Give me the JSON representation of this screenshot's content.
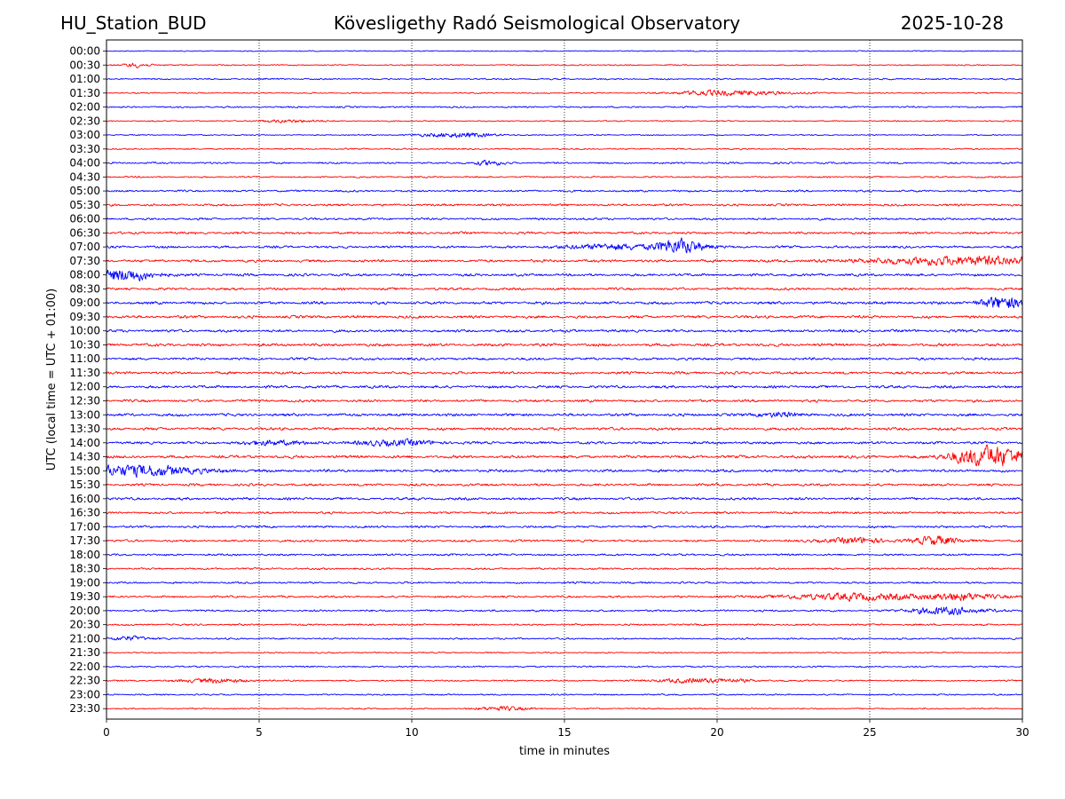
{
  "header": {
    "station": "HU_Station_BUD",
    "observatory": "Kövesligethy Radó Seismological Observatory",
    "date": "2025-10-28"
  },
  "chart_data": {
    "type": "line",
    "title": "Kövesligethy Radó Seismological Observatory",
    "xlabel": "time in minutes",
    "ylabel": "UTC (local time = UTC + 01:00)",
    "xlim": [
      0,
      30
    ],
    "xticks": [
      0,
      5,
      10,
      15,
      20,
      25,
      30
    ],
    "grid": "vertical dotted lines at x ticks",
    "row_labels": [
      "00:00",
      "00:30",
      "01:00",
      "01:30",
      "02:00",
      "02:30",
      "03:00",
      "03:30",
      "04:00",
      "04:30",
      "05:00",
      "05:30",
      "06:00",
      "06:30",
      "07:00",
      "07:30",
      "08:00",
      "08:30",
      "09:00",
      "09:30",
      "10:00",
      "10:30",
      "11:00",
      "11:30",
      "12:00",
      "12:30",
      "13:00",
      "13:30",
      "14:00",
      "14:30",
      "15:00",
      "15:30",
      "16:00",
      "16:30",
      "17:00",
      "17:30",
      "18:00",
      "18:30",
      "19:00",
      "19:30",
      "20:00",
      "20:30",
      "21:00",
      "21:30",
      "22:00",
      "22:30",
      "23:00",
      "23:30"
    ],
    "colors": [
      "#0000ff",
      "#ff0000"
    ],
    "noise_level": [
      0.18,
      0.22,
      0.26,
      0.22,
      0.3,
      0.22,
      0.2,
      0.26,
      0.32,
      0.28,
      0.36,
      0.4,
      0.4,
      0.42,
      0.42,
      0.46,
      0.46,
      0.44,
      0.5,
      0.5,
      0.48,
      0.52,
      0.46,
      0.46,
      0.48,
      0.46,
      0.5,
      0.5,
      0.46,
      0.52,
      0.5,
      0.44,
      0.46,
      0.4,
      0.4,
      0.4,
      0.36,
      0.34,
      0.34,
      0.36,
      0.34,
      0.32,
      0.3,
      0.24,
      0.28,
      0.28,
      0.26,
      0.24
    ],
    "events": [
      {
        "row": "00:30",
        "minute": 1.0,
        "amp": 1.0,
        "dur": 0.4
      },
      {
        "row": "01:30",
        "minute": 21.0,
        "amp": 0.9,
        "dur": 1.5
      },
      {
        "row": "01:30",
        "minute": 19.5,
        "amp": 0.7,
        "dur": 1.0
      },
      {
        "row": "02:30",
        "minute": 6.0,
        "amp": 0.6,
        "dur": 1.0
      },
      {
        "row": "03:00",
        "minute": 11.5,
        "amp": 1.1,
        "dur": 1.2
      },
      {
        "row": "04:00",
        "minute": 12.5,
        "amp": 1.0,
        "dur": 0.5
      },
      {
        "row": "07:00",
        "minute": 18.8,
        "amp": 3.2,
        "dur": 0.8
      },
      {
        "row": "07:00",
        "minute": 16.5,
        "amp": 1.2,
        "dur": 1.5
      },
      {
        "row": "07:30",
        "minute": 28.5,
        "amp": 1.8,
        "dur": 3.5
      },
      {
        "row": "08:00",
        "minute": 0.6,
        "amp": 2.6,
        "dur": 1.0
      },
      {
        "row": "09:00",
        "minute": 29.4,
        "amp": 2.6,
        "dur": 0.8
      },
      {
        "row": "13:00",
        "minute": 22.0,
        "amp": 1.0,
        "dur": 0.6
      },
      {
        "row": "14:00",
        "minute": 5.5,
        "amp": 1.0,
        "dur": 1.0
      },
      {
        "row": "14:00",
        "minute": 9.5,
        "amp": 1.2,
        "dur": 1.2
      },
      {
        "row": "14:30",
        "minute": 29.2,
        "amp": 4.0,
        "dur": 1.0
      },
      {
        "row": "14:30",
        "minute": 28.2,
        "amp": 1.6,
        "dur": 1.0
      },
      {
        "row": "15:00",
        "minute": 1.0,
        "amp": 2.4,
        "dur": 2.0
      },
      {
        "row": "17:30",
        "minute": 27.2,
        "amp": 2.0,
        "dur": 0.7
      },
      {
        "row": "17:30",
        "minute": 24.5,
        "amp": 1.2,
        "dur": 1.0
      },
      {
        "row": "19:30",
        "minute": 24.5,
        "amp": 1.4,
        "dur": 2.5
      },
      {
        "row": "19:30",
        "minute": 28.0,
        "amp": 1.4,
        "dur": 1.2
      },
      {
        "row": "20:00",
        "minute": 27.5,
        "amp": 1.6,
        "dur": 1.2
      },
      {
        "row": "21:00",
        "minute": 0.8,
        "amp": 1.0,
        "dur": 0.6
      },
      {
        "row": "22:30",
        "minute": 3.5,
        "amp": 1.0,
        "dur": 1.0
      },
      {
        "row": "22:30",
        "minute": 19.5,
        "amp": 1.0,
        "dur": 1.5
      },
      {
        "row": "23:30",
        "minute": 13.0,
        "amp": 0.9,
        "dur": 0.8
      }
    ]
  }
}
